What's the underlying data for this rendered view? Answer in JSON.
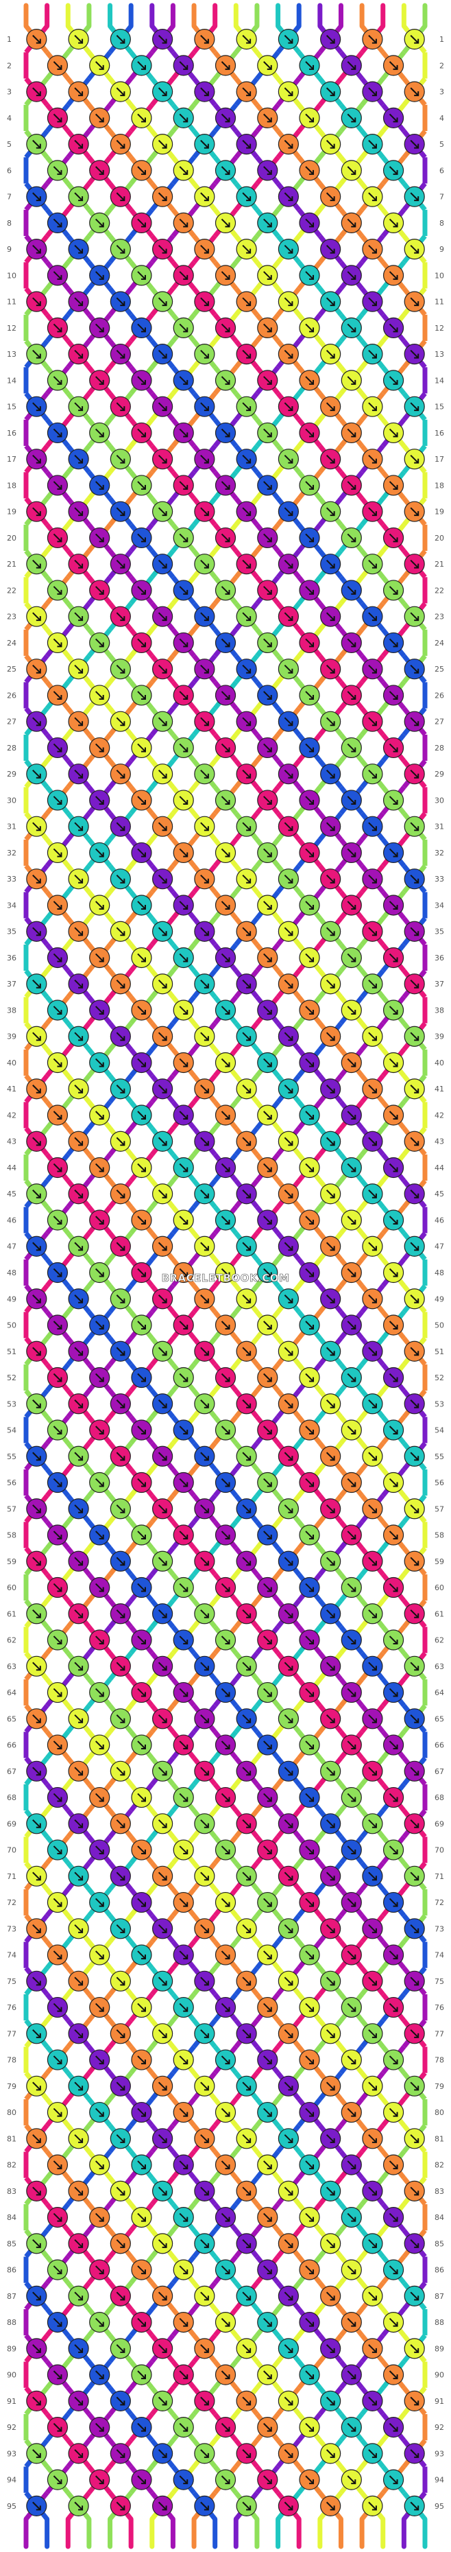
{
  "pattern": {
    "type": "friendship-bracelet",
    "strings": 20,
    "rows": 95,
    "watermark": "BRACELETBOOK.COM",
    "row_labels": [
      "1",
      "2",
      "3",
      "4",
      "5",
      "6",
      "7",
      "8",
      "9",
      "10",
      "11",
      "12",
      "13",
      "14",
      "15",
      "16",
      "17",
      "18",
      "19",
      "20",
      "21",
      "22",
      "23",
      "24",
      "25",
      "26",
      "27",
      "28",
      "29",
      "30",
      "31",
      "32",
      "33",
      "34",
      "35",
      "36",
      "37",
      "38",
      "39",
      "40",
      "41",
      "42",
      "43",
      "44",
      "45",
      "46",
      "47",
      "48",
      "49",
      "50",
      "51",
      "52",
      "53",
      "54",
      "55",
      "56",
      "57",
      "58",
      "59",
      "60",
      "61",
      "62",
      "63",
      "64",
      "65",
      "66",
      "67",
      "68",
      "69",
      "70",
      "71",
      "72",
      "73",
      "74",
      "75",
      "76",
      "77",
      "78",
      "79",
      "80",
      "81",
      "82",
      "83",
      "84",
      "85",
      "86",
      "87",
      "88",
      "89",
      "90",
      "91",
      "92",
      "93",
      "94",
      "95"
    ],
    "colors": [
      {
        "name": "orange",
        "hex": "#f5883a"
      },
      {
        "name": "magenta",
        "hex": "#e8167a"
      },
      {
        "name": "yellow",
        "hex": "#e5f73a"
      },
      {
        "name": "lime",
        "hex": "#8fe05a"
      },
      {
        "name": "teal",
        "hex": "#1fc7c1"
      },
      {
        "name": "blue",
        "hex": "#1f55d8"
      },
      {
        "name": "purple",
        "hex": "#7a1cc8"
      },
      {
        "name": "violet",
        "hex": "#a312b5"
      }
    ],
    "string_order": [
      "orange",
      "magenta",
      "yellow",
      "lime",
      "teal",
      "blue",
      "purple",
      "violet",
      "orange",
      "magenta",
      "yellow",
      "lime",
      "teal",
      "blue",
      "purple",
      "violet",
      "orange",
      "magenta",
      "yellow",
      "lime"
    ]
  }
}
